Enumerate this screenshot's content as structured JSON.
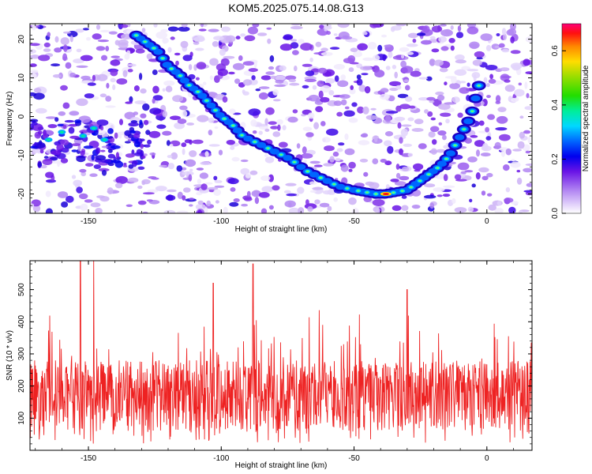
{
  "title": "KOM5.2025.075.14.08.G13",
  "chart_data": [
    {
      "type": "heatmap",
      "xlabel": "Height of straight line (km)",
      "ylabel": "Frequency (Hz)",
      "xlim": [
        -172,
        17
      ],
      "ylim": [
        -25,
        24
      ],
      "x_ticks": [
        -150,
        -100,
        -50,
        0
      ],
      "x_tick_labels": [
        "-150",
        "-100",
        "-50",
        "0"
      ],
      "y_ticks": [
        20,
        10,
        0,
        -10,
        -20
      ],
      "y_tick_labels": [
        "20",
        "10",
        "0",
        "-10",
        "-20"
      ],
      "colorbar": {
        "label": "Normalized spectral amplitude",
        "range": [
          0,
          0.7
        ],
        "ticks": [
          0.0,
          0.2,
          0.4,
          0.6
        ],
        "tick_labels": [
          "0.0",
          "0.2",
          "0.4",
          "0.6"
        ]
      },
      "ridge": {
        "x": [
          -132,
          -128,
          -124,
          -120,
          -116,
          -112,
          -108,
          -104,
          -100,
          -96,
          -92,
          -86,
          -80,
          -74,
          -68,
          -62,
          -56,
          -50,
          -46,
          -42,
          -38,
          -34,
          -30,
          -26,
          -22,
          -18,
          -14,
          -10,
          -6,
          -3
        ],
        "y": [
          21,
          19,
          17,
          13,
          11,
          8,
          6,
          3,
          0,
          -2,
          -5,
          -7,
          -9,
          -11,
          -14,
          -16,
          -18,
          -19,
          -19.5,
          -20,
          -20,
          -19.5,
          -19,
          -17,
          -15,
          -13,
          -10,
          -5,
          0,
          8
        ]
      },
      "grid": false
    },
    {
      "type": "line",
      "xlabel": "Height of straight line (km)",
      "ylabel": "SNR (10 * v/v)",
      "xlim": [
        -172,
        17
      ],
      "ylim": [
        0,
        590
      ],
      "x_ticks": [
        -150,
        -100,
        -50,
        0
      ],
      "x_tick_labels": [
        "-150",
        "-100",
        "-50",
        "0"
      ],
      "y_ticks": [
        100,
        200,
        300,
        400,
        500
      ],
      "y_tick_labels": [
        "100",
        "200",
        "300",
        "400",
        "500"
      ],
      "series": [
        {
          "color": "#ee2222",
          "x_start": -172,
          "x_end": 17,
          "baseline_mean": 160,
          "peak_max": 590,
          "notable_peaks": [
            {
              "x": -153,
              "y": 590
            },
            {
              "x": -148,
              "y": 590
            },
            {
              "x": -103,
              "y": 520
            },
            {
              "x": -88,
              "y": 580
            },
            {
              "x": -30,
              "y": 500
            }
          ]
        }
      ],
      "grid": false
    }
  ]
}
